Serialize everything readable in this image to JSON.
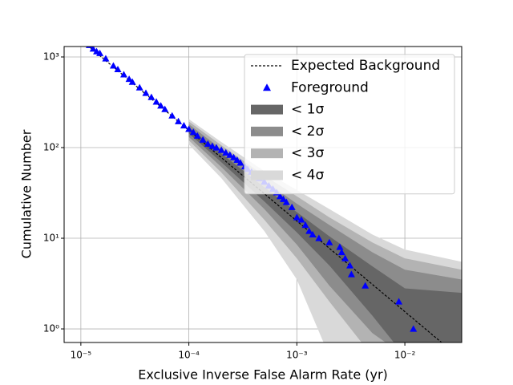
{
  "chart_data": {
    "type": "line",
    "xlabel": "Exclusive Inverse False Alarm Rate (yr)",
    "ylabel": "Cumulative Number",
    "xscale": "log",
    "yscale": "log",
    "xlim": [
      7e-06,
      0.0336
    ],
    "ylim": [
      0.708,
      1303
    ],
    "xticks": [
      {
        "value": 1e-05,
        "label": "10⁻⁵"
      },
      {
        "value": 0.0001,
        "label": "10⁻⁴"
      },
      {
        "value": 0.001,
        "label": "10⁻³"
      },
      {
        "value": 0.01,
        "label": "10⁻²"
      }
    ],
    "yticks": [
      {
        "value": 1,
        "label": "10⁰"
      },
      {
        "value": 10,
        "label": "10¹"
      },
      {
        "value": 100,
        "label": "10²"
      },
      {
        "value": 1000,
        "label": "10³"
      }
    ],
    "grid": true,
    "legend": "upper right",
    "series": [
      {
        "name": "Expected Background",
        "color": "#000000",
        "style": "dashed",
        "x": [
          1e-05,
          0.0336
        ],
        "values": [
          1550,
          0.461
        ]
      },
      {
        "name": "Foreground",
        "color": "#0000ff",
        "marker": "triangle",
        "x": [
          1.2e-05,
          1.3e-05,
          1.4e-05,
          1.5e-05,
          1.7e-05,
          2e-05,
          2.2e-05,
          2.5e-05,
          2.8e-05,
          3e-05,
          3.5e-05,
          4e-05,
          4.5e-05,
          5e-05,
          5.5e-05,
          6e-05,
          7e-05,
          8e-05,
          9e-05,
          0.0001,
          0.00011,
          0.00012,
          0.000135,
          0.00015,
          0.000165,
          0.00018,
          0.0002,
          0.00022,
          0.00024,
          0.00026,
          0.00028,
          0.0003,
          0.00033,
          0.00035,
          0.00038,
          0.0004,
          0.00045,
          0.0005,
          0.00055,
          0.0006,
          0.00065,
          0.0007,
          0.00075,
          0.0008,
          0.0009,
          0.001,
          0.0011,
          0.0012,
          0.0013,
          0.0014,
          0.0016,
          0.002,
          0.0025,
          0.0026,
          0.0028,
          0.0031,
          0.0032,
          0.0043,
          0.0088,
          0.012
        ],
        "values": [
          1350,
          1230,
          1150,
          1100,
          960,
          800,
          730,
          640,
          570,
          530,
          460,
          400,
          360,
          320,
          290,
          265,
          225,
          195,
          175,
          160,
          148,
          135,
          122,
          110,
          104,
          100,
          94,
          88,
          83,
          78,
          73,
          68,
          62,
          58,
          54,
          50,
          46,
          42,
          38,
          35,
          32,
          29,
          27,
          25,
          22,
          17,
          16,
          14,
          12,
          11,
          10,
          9,
          8,
          7,
          6,
          5,
          4,
          3,
          2,
          1
        ]
      }
    ],
    "bands": [
      {
        "name": "< 4σ",
        "color": "#d9d9d9",
        "x": [
          0.0001,
          0.0002,
          0.0005,
          0.001,
          0.002,
          0.005,
          0.01,
          0.0336
        ],
        "lower": [
          108,
          46,
          12,
          3.5,
          0.5,
          0.5,
          0.5,
          0.5
        ],
        "upper": [
          206,
          115,
          55,
          34,
          21,
          11,
          7.5,
          5.5
        ]
      },
      {
        "name": "< 3σ",
        "color": "#b3b3b3",
        "x": [
          0.0001,
          0.0002,
          0.0005,
          0.001,
          0.002,
          0.005,
          0.01,
          0.0336
        ],
        "lower": [
          120,
          53,
          16,
          6,
          2,
          0.5,
          0.5,
          0.5
        ],
        "upper": [
          194,
          106,
          49,
          29,
          17,
          9,
          6,
          4.5
        ]
      },
      {
        "name": "< 2σ",
        "color": "#8c8c8c",
        "x": [
          0.0001,
          0.0002,
          0.0005,
          0.001,
          0.002,
          0.005,
          0.01,
          0.0336
        ],
        "lower": [
          131,
          61,
          21,
          8.5,
          3,
          0.9,
          0.5,
          0.5
        ],
        "upper": [
          181,
          96,
          43,
          24,
          14,
          7,
          4.5,
          3.5
        ]
      },
      {
        "name": "< 1σ",
        "color": "#666666",
        "x": [
          0.0001,
          0.0002,
          0.0005,
          0.001,
          0.002,
          0.005,
          0.01,
          0.0336
        ],
        "lower": [
          143,
          69,
          25.5,
          11.6,
          5,
          1.4,
          0.5,
          0.5
        ],
        "upper": [
          167,
          86,
          36.5,
          19.4,
          10.5,
          4.9,
          2.8,
          2.5
        ]
      }
    ]
  }
}
